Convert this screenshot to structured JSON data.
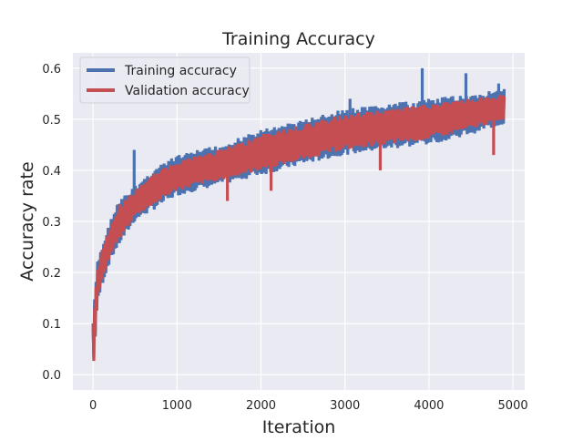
{
  "chart_data": {
    "type": "line",
    "title": "Training Accuracy",
    "xlabel": "Iteration",
    "ylabel": "Accuracy rate",
    "xlim": [
      -240,
      5140
    ],
    "ylim": [
      -0.03,
      0.63
    ],
    "xticks": [
      0,
      1000,
      2000,
      3000,
      4000,
      5000
    ],
    "yticks": [
      0.0,
      0.1,
      0.2,
      0.3,
      0.4,
      0.5,
      0.6
    ],
    "xtick_labels": [
      "0",
      "1000",
      "2000",
      "3000",
      "4000",
      "5000"
    ],
    "ytick_labels": [
      "0.0",
      "0.1",
      "0.2",
      "0.3",
      "0.4",
      "0.5",
      "0.6"
    ],
    "grid": true,
    "legend_position": "top-left",
    "series": [
      {
        "name": "Training accuracy",
        "color": "#4c72b0",
        "trend": {
          "x": [
            0,
            10,
            50,
            100,
            200,
            300,
            500,
            700,
            1000,
            1500,
            2000,
            2500,
            3000,
            3500,
            4000,
            4500,
            4900
          ],
          "y": [
            0.0,
            0.12,
            0.18,
            0.22,
            0.26,
            0.3,
            0.33,
            0.36,
            0.39,
            0.42,
            0.44,
            0.46,
            0.48,
            0.5,
            0.505,
            0.52,
            0.53
          ]
        },
        "band": {
          "x": [
            0,
            50,
            100,
            200,
            300,
            500,
            700,
            1000,
            1500,
            2000,
            2500,
            3000,
            3500,
            4000,
            4500,
            4900
          ],
          "lower": [
            0.0,
            0.13,
            0.17,
            0.22,
            0.25,
            0.3,
            0.32,
            0.35,
            0.37,
            0.39,
            0.41,
            0.43,
            0.44,
            0.45,
            0.47,
            0.49
          ],
          "upper": [
            0.11,
            0.22,
            0.25,
            0.3,
            0.34,
            0.37,
            0.4,
            0.43,
            0.45,
            0.48,
            0.5,
            0.52,
            0.53,
            0.54,
            0.55,
            0.56
          ]
        },
        "spikes": [
          {
            "x": 490,
            "y": 0.44
          },
          {
            "x": 3060,
            "y": 0.54
          },
          {
            "x": 3920,
            "y": 0.6
          },
          {
            "x": 4440,
            "y": 0.59
          },
          {
            "x": 4830,
            "y": 0.57
          }
        ]
      },
      {
        "name": "Validation accuracy",
        "color": "#c44e52",
        "trend": {
          "x": [
            0,
            10,
            50,
            100,
            200,
            300,
            500,
            700,
            1000,
            1500,
            2000,
            2500,
            3000,
            3500,
            4000,
            4500,
            4900
          ],
          "y": [
            0.0,
            0.12,
            0.18,
            0.22,
            0.26,
            0.3,
            0.33,
            0.36,
            0.39,
            0.42,
            0.44,
            0.46,
            0.48,
            0.5,
            0.505,
            0.52,
            0.53
          ]
        },
        "band": {
          "x": [
            0,
            50,
            100,
            200,
            300,
            500,
            700,
            1000,
            1500,
            2000,
            2500,
            3000,
            3500,
            4000,
            4500,
            4900
          ],
          "lower": [
            0.0,
            0.14,
            0.18,
            0.23,
            0.26,
            0.31,
            0.33,
            0.36,
            0.38,
            0.4,
            0.42,
            0.44,
            0.45,
            0.46,
            0.48,
            0.5
          ],
          "upper": [
            0.1,
            0.21,
            0.24,
            0.29,
            0.33,
            0.36,
            0.39,
            0.42,
            0.44,
            0.47,
            0.49,
            0.51,
            0.52,
            0.53,
            0.54,
            0.55
          ]
        },
        "dips": [
          {
            "x": 1600,
            "y": 0.34
          },
          {
            "x": 2120,
            "y": 0.36
          },
          {
            "x": 3420,
            "y": 0.4
          },
          {
            "x": 4770,
            "y": 0.43
          }
        ]
      }
    ]
  }
}
